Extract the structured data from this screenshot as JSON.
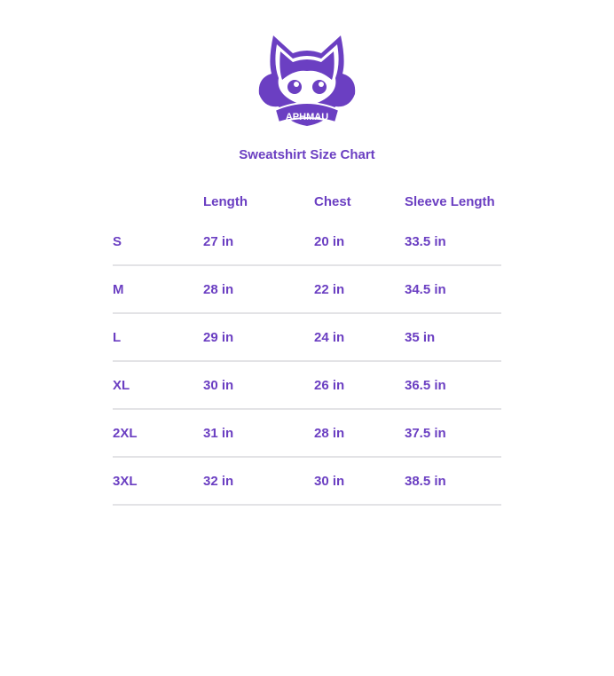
{
  "logo": {
    "text": "APHMAU",
    "color": "#6b3fc2"
  },
  "title": "Sweatshirt Size Chart",
  "table": {
    "headers": [
      "",
      "Length",
      "Chest",
      "Sleeve Length"
    ],
    "rows": [
      [
        "S",
        "27 in",
        "20 in",
        "33.5 in"
      ],
      [
        "M",
        "28 in",
        "22 in",
        "34.5 in"
      ],
      [
        "L",
        "29 in",
        "24 in",
        "35 in"
      ],
      [
        "XL",
        "30 in",
        "26 in",
        "36.5 in"
      ],
      [
        "2XL",
        "31 in",
        "28 in",
        "37.5 in"
      ],
      [
        "3XL",
        "32 in",
        "30 in",
        "38.5 in"
      ]
    ]
  }
}
